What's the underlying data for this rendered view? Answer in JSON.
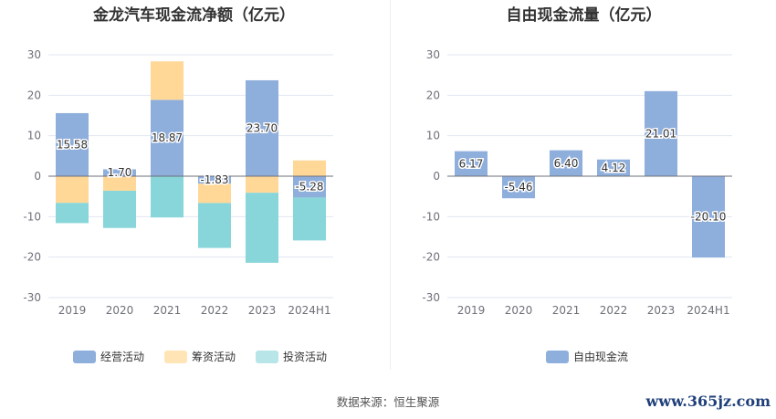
{
  "footer": {
    "source": "数据来源：恒生聚源",
    "watermark": "www.365jz.com"
  },
  "colors": {
    "operating": "#8eaedc",
    "financing": "#ffd898",
    "investing": "#88d6d9",
    "fcf": "#8eaedc"
  },
  "chart_data": [
    {
      "type": "bar",
      "stacked": true,
      "title": "金龙汽车现金流净额（亿元）",
      "categories": [
        "2019",
        "2020",
        "2021",
        "2022",
        "2023",
        "2024H1"
      ],
      "ylim": [
        -30,
        30
      ],
      "yticks": [
        30,
        20,
        10,
        0,
        -10,
        -20,
        -30
      ],
      "legend_position": "bottom",
      "series": [
        {
          "name": "经营活动",
          "key": "operating",
          "values": [
            15.58,
            1.7,
            18.87,
            -1.83,
            23.7,
            -5.28
          ],
          "labels": [
            "15.58",
            "1.70",
            "18.87",
            "-1.83",
            "23.70",
            "-5.28"
          ]
        },
        {
          "name": "筹资活动",
          "key": "financing",
          "values": [
            -6.6,
            -3.6,
            9.5,
            -4.8,
            -4.1,
            3.9
          ]
        },
        {
          "name": "投资活动",
          "key": "investing",
          "values": [
            -5.0,
            -9.2,
            -10.2,
            -11.1,
            -17.3,
            -10.6
          ]
        }
      ]
    },
    {
      "type": "bar",
      "title": "自由现金流量（亿元）",
      "categories": [
        "2019",
        "2020",
        "2021",
        "2022",
        "2023",
        "2024H1"
      ],
      "ylim": [
        -30,
        30
      ],
      "yticks": [
        30,
        20,
        10,
        0,
        -10,
        -20,
        -30
      ],
      "legend_position": "bottom",
      "series": [
        {
          "name": "自由现金流",
          "key": "fcf",
          "values": [
            6.17,
            -5.46,
            6.4,
            4.12,
            21.01,
            -20.1
          ],
          "labels": [
            "6.17",
            "-5.46",
            "6.40",
            "4.12",
            "21.01",
            "-20.10"
          ]
        }
      ]
    }
  ]
}
